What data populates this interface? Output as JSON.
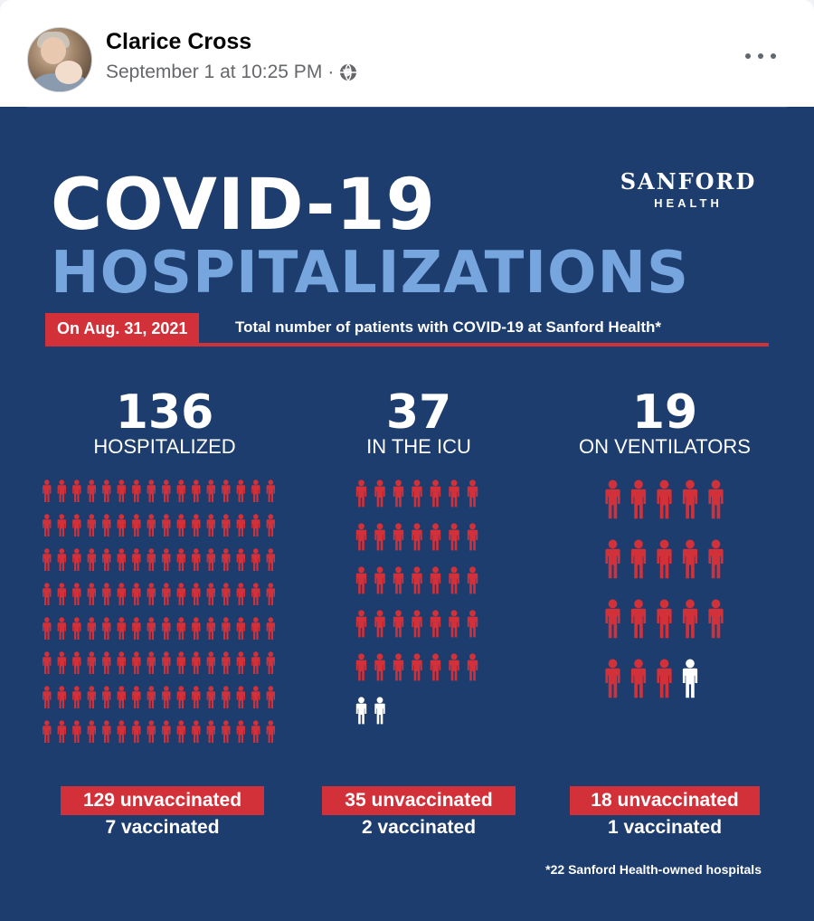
{
  "post": {
    "author": "Clarice Cross",
    "timestamp": "September 1 at 10:25 PM",
    "separator": "·",
    "privacy_icon": "globe-icon",
    "more_icon": "more-options-icon"
  },
  "infographic": {
    "title_line1": "COVID-19",
    "title_line2": "HOSPITALIZATIONS",
    "brand_name": "SANFORD",
    "brand_sub": "HEALTH",
    "date_badge": "On Aug. 31, 2021",
    "date_description": "Total number of patients with COVID-19 at Sanford Health*",
    "footnote": "*22 Sanford Health-owned hospitals",
    "colors": {
      "background": "#1d3d6e",
      "accent_red": "#d3313a",
      "light_blue": "#77a6de",
      "vaccinated": "#ffffff",
      "unvaccinated": "#d3313a"
    },
    "stats": [
      {
        "number": "136",
        "label": "HOSPITALIZED",
        "unvaccinated_label": "129 unvaccinated",
        "vaccinated_label": "7 vaccinated",
        "unvaccinated": 129,
        "vaccinated": 7
      },
      {
        "number": "37",
        "label": "IN THE ICU",
        "unvaccinated_label": "35 unvaccinated",
        "vaccinated_label": "2 vaccinated",
        "unvaccinated": 35,
        "vaccinated": 2
      },
      {
        "number": "19",
        "label": "ON VENTILATORS",
        "unvaccinated_label": "18 unvaccinated",
        "vaccinated_label": "1 vaccinated",
        "unvaccinated": 18,
        "vaccinated": 1
      }
    ]
  }
}
